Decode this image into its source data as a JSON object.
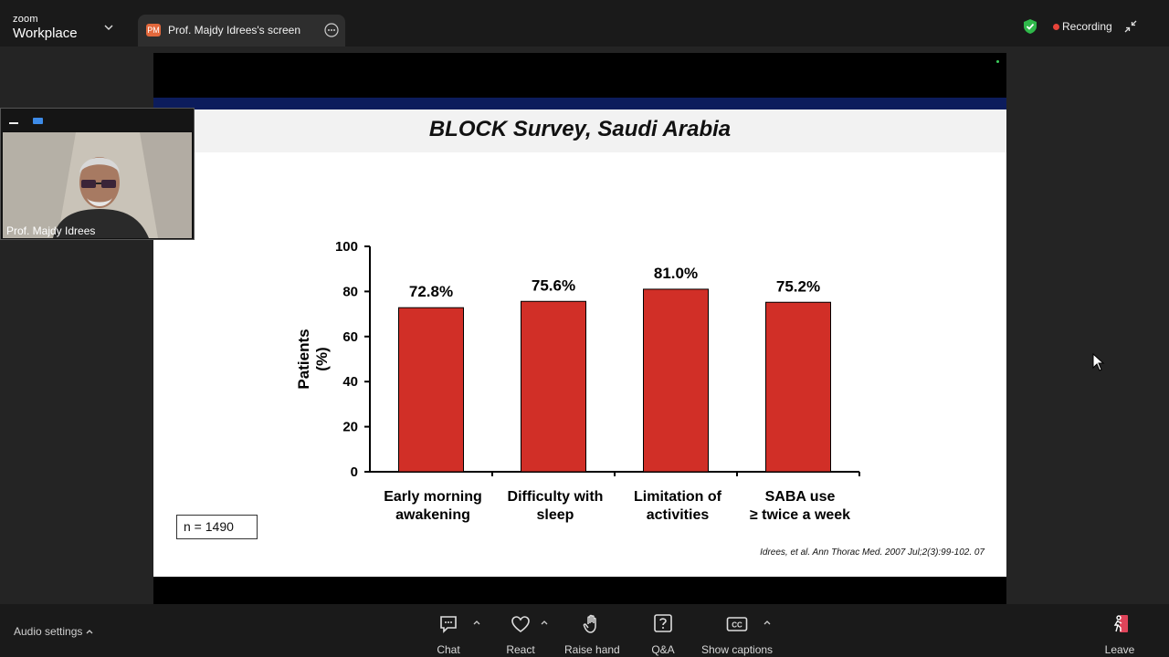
{
  "app": {
    "brand_small": "zoom",
    "brand_large": "Workplace"
  },
  "tab": {
    "avatar": "PM",
    "title": "Prof. Majdy Idrees's screen"
  },
  "status": {
    "recording_label": "Recording"
  },
  "participant": {
    "name": "Prof. Majdy Idrees"
  },
  "slide": {
    "title": "BLOCK Survey, Saudi Arabia",
    "n_label": "n = 1490",
    "citation": "Idrees, et al. Ann Thorac Med. 2007 Jul;2(3):99-102. 07"
  },
  "chart_data": {
    "type": "bar",
    "ylabel": "Patients (%)",
    "ylabel_lines": [
      "Patients",
      "(%)"
    ],
    "ylim": [
      0,
      100
    ],
    "yticks": [
      0,
      20,
      40,
      60,
      80,
      100
    ],
    "categories": [
      [
        "Early morning",
        "awakening"
      ],
      [
        "Difficulty with",
        "sleep"
      ],
      [
        "Limitation of",
        "activities"
      ],
      [
        "SABA use",
        "≥ twice a week"
      ]
    ],
    "values": [
      72.8,
      75.6,
      81.0,
      75.2
    ],
    "value_labels": [
      "72.8%",
      "75.6%",
      "81.0%",
      "75.2%"
    ],
    "bar_color": "#d12f27"
  },
  "toolbar": {
    "audio_settings": "Audio settings",
    "chat": "Chat",
    "react": "React",
    "raise_hand": "Raise hand",
    "qa": "Q&A",
    "show_captions": "Show captions",
    "leave": "Leave"
  },
  "colors": {
    "recording": "#e8443a",
    "shield": "#2fb84a",
    "avatar": "#e2683c",
    "leave": "#e0445a"
  }
}
